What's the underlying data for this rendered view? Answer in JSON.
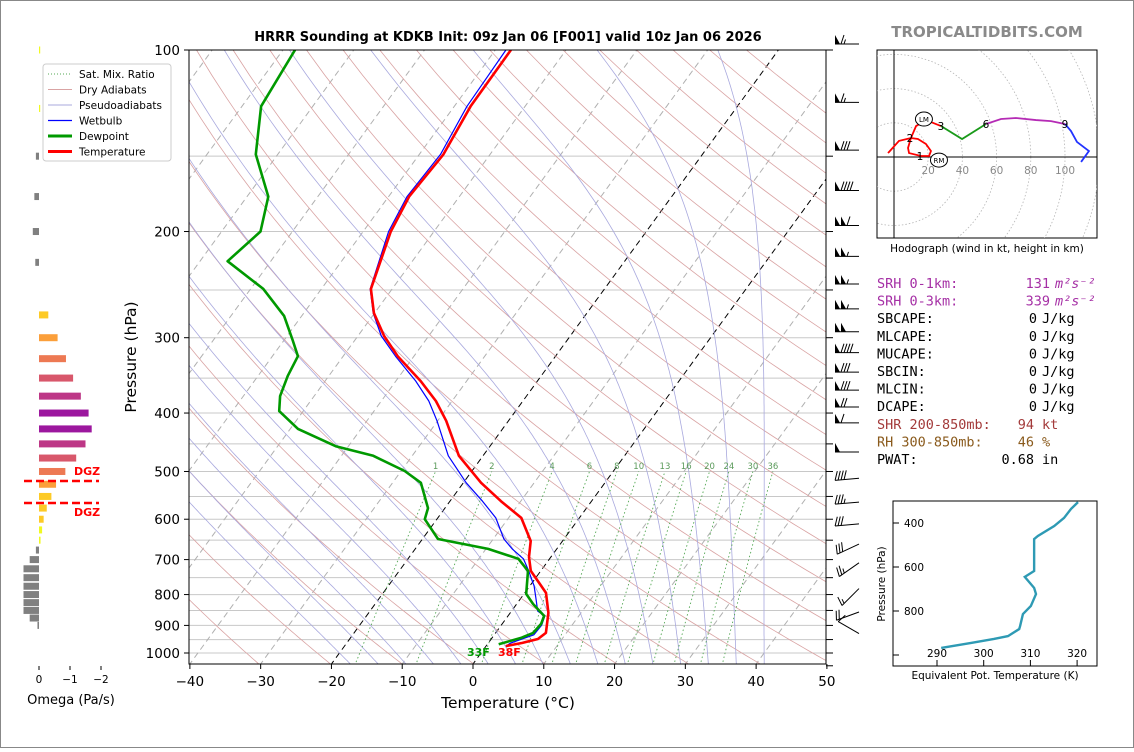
{
  "watermark": "TROPICALTIDBITS.COM",
  "title": "HRRR Sounding at KDKB Init: 09z Jan 06 [F001] valid 10z Jan 06 2026",
  "colors": {
    "temperature": "#ff0000",
    "dewpoint": "#009900",
    "wetbulb": "#0000ff",
    "dry_adiabat": "#d9a3a3",
    "pseudoadiabat": "#a9a9de",
    "mixing_ratio": "#55a855",
    "isotherm_zero": "#000000",
    "thetae": "#2e9ab4"
  },
  "legend": [
    {
      "label": "Sat. Mix. Ratio",
      "style": "dotted-green"
    },
    {
      "label": "Dry Adiabats",
      "style": "thin-red"
    },
    {
      "label": "Pseudoadiabats",
      "style": "thin-blue"
    },
    {
      "label": "Wetbulb",
      "style": "blue"
    },
    {
      "label": "Dewpoint",
      "style": "thick-green"
    },
    {
      "label": "Temperature",
      "style": "thick-red"
    }
  ],
  "chart_data": [
    {
      "type": "line",
      "subtype": "skew-t log-p",
      "title": "HRRR Sounding at KDKB Init: 09z Jan 06 [F001] valid 10z Jan 06 2026",
      "xlabel": "Temperature (°C)",
      "ylabel": "Pressure (hPa)",
      "xlim": [
        -40,
        50
      ],
      "ylim": [
        1050,
        100
      ],
      "yscale": "log",
      "x_ticks": [
        -40,
        -30,
        -20,
        -10,
        0,
        10,
        20,
        30,
        40,
        50
      ],
      "y_ticks": [
        100,
        200,
        300,
        400,
        500,
        600,
        700,
        800,
        900,
        1000
      ],
      "mixing_ratio_labels": [
        "1",
        "2",
        "4",
        "6",
        "8",
        "10",
        "13",
        "16",
        "20",
        "24",
        "30",
        "36"
      ],
      "surface_labels": {
        "dewpoint": "33F",
        "temperature": "38F"
      },
      "series": [
        {
          "name": "Temperature",
          "pressure": [
            100,
            124,
            149,
            175,
            200,
            249,
            273,
            298,
            322,
            354,
            382,
            412,
            471,
            522,
            560,
            597,
            652,
            693,
            731,
            774,
            795,
            858,
            926,
            948,
            962,
            974
          ],
          "values": [
            -57.8,
            -57.7,
            -56.6,
            -57.1,
            -56.1,
            -53.0,
            -50.1,
            -46.3,
            -42.3,
            -36.5,
            -32.3,
            -28.8,
            -23.4,
            -17.5,
            -12.8,
            -8.2,
            -4.5,
            -3.1,
            -1.4,
            1.6,
            3.0,
            5.4,
            7.1,
            6.6,
            4.8,
            2.8
          ]
        },
        {
          "name": "Dewpoint",
          "pressure": [
            100,
            124,
            149,
            175,
            200,
            224,
            249,
            276,
            302,
            322,
            347,
            375,
            397,
            425,
            454,
            471,
            499,
            522,
            575,
            600,
            647,
            672,
            698,
            731,
            798,
            829,
            868,
            895,
            926,
            944,
            967
          ],
          "values": [
            -88.3,
            -87.3,
            -83.1,
            -77.0,
            -74.5,
            -76.1,
            -68.2,
            -62.5,
            -58.9,
            -56.4,
            -55.8,
            -54.8,
            -53.4,
            -48.9,
            -41.8,
            -35.5,
            -29.5,
            -26.0,
            -22.4,
            -21.7,
            -17.8,
            -9.7,
            -4.4,
            -1.8,
            0.3,
            2.3,
            5.1,
            5.5,
            5.3,
            4.1,
            1.6
          ]
        },
        {
          "name": "Wetbulb",
          "pressure": [
            100,
            124,
            149,
            175,
            200,
            249,
            273,
            298,
            322,
            354,
            382,
            412,
            471,
            522,
            560,
            597,
            647,
            672,
            698,
            731,
            774,
            813,
            852,
            868,
            899,
            933,
            962,
            974
          ],
          "values": [
            -58.5,
            -58.2,
            -57.0,
            -57.4,
            -56.4,
            -53.1,
            -50.2,
            -46.7,
            -42.6,
            -37.2,
            -33.3,
            -30.1,
            -24.9,
            -19.6,
            -15.4,
            -11.8,
            -8.5,
            -6.3,
            -3.7,
            -1.7,
            0.6,
            2.2,
            3.7,
            5.2,
            5.7,
            5.6,
            3.2,
            2.8
          ]
        }
      ],
      "wind_barbs": {
        "pressure": [
          100,
          125,
          150,
          175,
          200,
          225,
          250,
          275,
          300,
          325,
          350,
          375,
          400,
          425,
          475,
          525,
          575,
          625,
          675,
          725,
          800,
          875,
          950
        ],
        "speed_kt": [
          65,
          65,
          80,
          90,
          110,
          105,
          105,
          105,
          100,
          90,
          80,
          80,
          70,
          60,
          50,
          40,
          35,
          30,
          30,
          25,
          15,
          20,
          10
        ],
        "direction_deg": [
          270,
          270,
          270,
          270,
          270,
          270,
          270,
          270,
          270,
          270,
          270,
          270,
          270,
          270,
          270,
          265,
          265,
          265,
          245,
          235,
          225,
          250,
          300
        ]
      }
    },
    {
      "type": "bar",
      "subtype": "omega profile (horizontal)",
      "xlabel": "Omega (Pa/s)",
      "x_ticks": [
        "0",
        "−1",
        "−2"
      ],
      "xlim": [
        0.5,
        -2.1
      ],
      "dgz_label": "DGZ",
      "dgz_bounds_hPa": [
        520,
        570
      ],
      "pressure": [
        100,
        125,
        150,
        175,
        200,
        225,
        275,
        300,
        325,
        350,
        375,
        400,
        425,
        450,
        475,
        500,
        525,
        550,
        575,
        600,
        625,
        650,
        675,
        700,
        725,
        750,
        775,
        800,
        825,
        850,
        875,
        900
      ],
      "values": [
        -0.02,
        -0.03,
        0.1,
        0.15,
        0.2,
        0.12,
        -0.3,
        -0.6,
        -0.87,
        -1.1,
        -1.35,
        -1.6,
        -1.7,
        -1.5,
        -1.2,
        -0.85,
        -0.55,
        -0.4,
        -0.25,
        -0.15,
        -0.1,
        -0.05,
        0.1,
        0.3,
        0.5,
        0.5,
        0.5,
        0.5,
        0.5,
        0.5,
        0.3,
        0.05
      ]
    },
    {
      "type": "line",
      "subtype": "hodograph",
      "caption": "Hodograph (wind in kt, height in km)",
      "ring_labels": [
        "20",
        "40",
        "60",
        "80",
        "100"
      ],
      "height_labels": [
        "1",
        "2",
        "3",
        "6",
        "9"
      ],
      "storm_motion_labels": {
        "left_mover": "LM",
        "right_mover": "RM",
        "lm_uv": [
          17.5,
          22.2
        ],
        "rm_uv": [
          26.3,
          -1.8
        ]
      },
      "series": [
        {
          "segment": "0-3 km",
          "color": "#ff0000",
          "u": [
            -3.5,
            2.9,
            9.9,
            14,
            18.7,
            21.6,
            20.5,
            15.8,
            8.8,
            8.2,
            9.9,
            12.9,
            18.7,
            27.5
          ],
          "v": [
            2.3,
            9.4,
            11.1,
            10.5,
            7.6,
            3.5,
            0.6,
            0.6,
            2.3,
            5.3,
            11.1,
            18.1,
            21.6,
            18.1
          ]
        },
        {
          "segment": "3-6 km",
          "color": "#1a9a1a",
          "u": [
            27.5,
            39.8,
            53.8
          ],
          "v": [
            18.1,
            10.5,
            19.3
          ]
        },
        {
          "segment": "6-9 km",
          "color": "#b52bb5",
          "u": [
            53.8,
            62.6,
            71.3,
            83,
            91.8,
            100
          ],
          "v": [
            19.3,
            22.2,
            22.8,
            21.6,
            21,
            19.3
          ]
        },
        {
          "segment": "9+ km",
          "color": "#2233ff",
          "u": [
            100,
            103.5,
            107,
            114,
            109.4
          ],
          "v": [
            19.3,
            15.2,
            8.8,
            3.5,
            -2.9
          ]
        }
      ],
      "height_label_uv": [
        [
          15.8,
          0.6
        ],
        [
          9.9,
          11.1
        ],
        [
          27.5,
          18.1
        ],
        [
          53.8,
          19.3
        ],
        [
          100,
          19.3
        ]
      ]
    },
    {
      "type": "line",
      "subtype": "theta-e profile",
      "xlabel": "Equivalent Pot. Temperature (K)",
      "ylabel": "Pressure (hPa)",
      "x_ticks": [
        "290",
        "300",
        "310",
        "320"
      ],
      "y_ticks": [
        "400",
        "600",
        "800"
      ],
      "xlim": [
        280.7,
        324.5
      ],
      "ylim": [
        1050,
        309
      ],
      "theta_e": [
        320.2,
        318.7,
        317.2,
        315.1,
        311.6,
        310.8,
        310.8,
        310.8,
        308.8,
        310.8,
        311.2,
        310.1,
        308.4,
        307.8,
        307.6,
        305.2,
        302.2,
        297.3,
        290.9
      ],
      "pressure": [
        305,
        336,
        377,
        414,
        459,
        473,
        564,
        618,
        645,
        695,
        723,
        777,
        814,
        868,
        882,
        914,
        927,
        945,
        968
      ]
    }
  ],
  "parameters": [
    {
      "label": "SRH 0-1km:",
      "value": "131",
      "unit": "m²s⁻²",
      "color": "#a52fa5"
    },
    {
      "label": "SRH 0-3km:",
      "value": "339",
      "unit": "m²s⁻²",
      "color": "#a52fa5"
    },
    {
      "label": "SBCAPE:",
      "value": "0",
      "unit": "J/kg",
      "color": "#000000"
    },
    {
      "label": "MLCAPE:",
      "value": "0",
      "unit": "J/kg",
      "color": "#000000"
    },
    {
      "label": "MUCAPE:",
      "value": "0",
      "unit": "J/kg",
      "color": "#000000"
    },
    {
      "label": "SBCIN:",
      "value": "0",
      "unit": "J/kg",
      "color": "#000000"
    },
    {
      "label": "MLCIN:",
      "value": "0",
      "unit": "J/kg",
      "color": "#000000"
    },
    {
      "label": "DCAPE:",
      "value": "0",
      "unit": "J/kg",
      "color": "#000000"
    },
    {
      "label": "SHR 200-850mb:",
      "value": "94",
      "unit": "kt",
      "color": "#a33a3a"
    },
    {
      "label": "RH 300-850mb:",
      "value": "46",
      "unit": "%",
      "color": "#8a5a1c"
    },
    {
      "label": "PWAT:",
      "value": "0.68",
      "unit": "in",
      "color": "#000000"
    }
  ]
}
